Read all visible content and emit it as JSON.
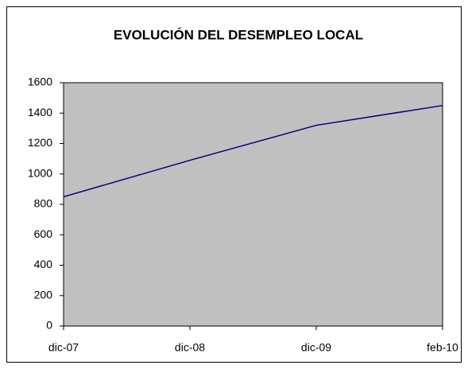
{
  "chart_data": {
    "type": "line",
    "title": "EVOLUCIÓN DEL DESEMPLEO LOCAL",
    "categories": [
      "dic-07",
      "dic-08",
      "dic-09",
      "feb-10"
    ],
    "series": [
      {
        "name": "Desempleo",
        "color": "#000080",
        "values": [
          850,
          1090,
          1320,
          1450
        ]
      }
    ],
    "ylim": [
      0,
      1600
    ],
    "yticks": [
      0,
      200,
      400,
      600,
      800,
      1000,
      1200,
      1400,
      1600
    ],
    "grid": false,
    "plot_background": "#c0c0c0"
  }
}
